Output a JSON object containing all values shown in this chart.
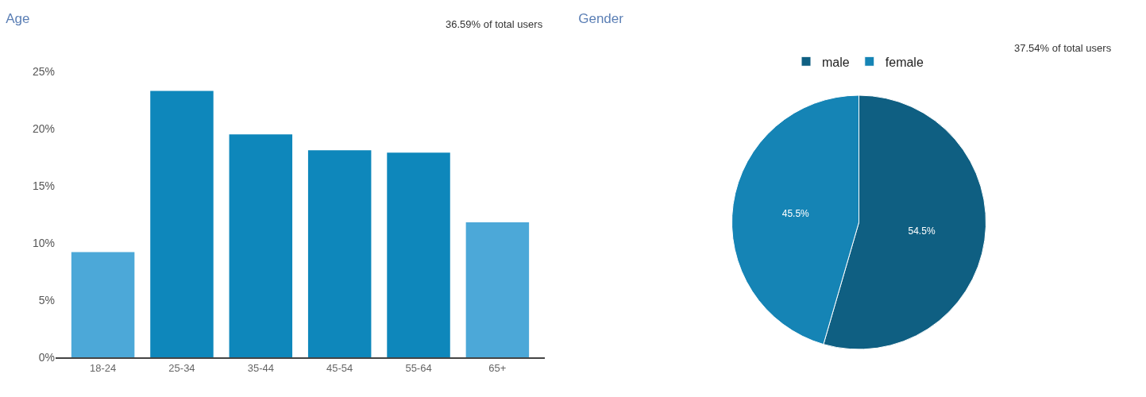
{
  "chart_data": [
    {
      "type": "bar",
      "title": "Age",
      "annotations": [
        "36.59% of total users"
      ],
      "categories": [
        "18-24",
        "25-34",
        "35-44",
        "45-54",
        "55-64",
        "65+"
      ],
      "values": [
        9.2,
        23.3,
        19.5,
        18.1,
        17.9,
        11.8
      ],
      "colors": [
        "#4ca8d8",
        "#0e87bb",
        "#0e87bb",
        "#0e87bb",
        "#0e87bb",
        "#4ca8d8"
      ],
      "ylim": [
        0,
        25
      ],
      "yticks": [
        {
          "value": 0,
          "label": "0%"
        },
        {
          "value": 5,
          "label": "5%"
        },
        {
          "value": 10,
          "label": "10%"
        },
        {
          "value": 15,
          "label": "15%"
        },
        {
          "value": 20,
          "label": "20%"
        },
        {
          "value": 25,
          "label": "25%"
        }
      ],
      "legend": false
    },
    {
      "type": "pie",
      "title": "Gender",
      "annotations": [
        "37.54% of total users"
      ],
      "categories": [
        "male",
        "female"
      ],
      "values": [
        54.5,
        45.5
      ],
      "colors": [
        "#0f5f82",
        "#1584b5"
      ],
      "value_labels": [
        "54.5%",
        "45.5%"
      ],
      "legend": "top"
    }
  ]
}
